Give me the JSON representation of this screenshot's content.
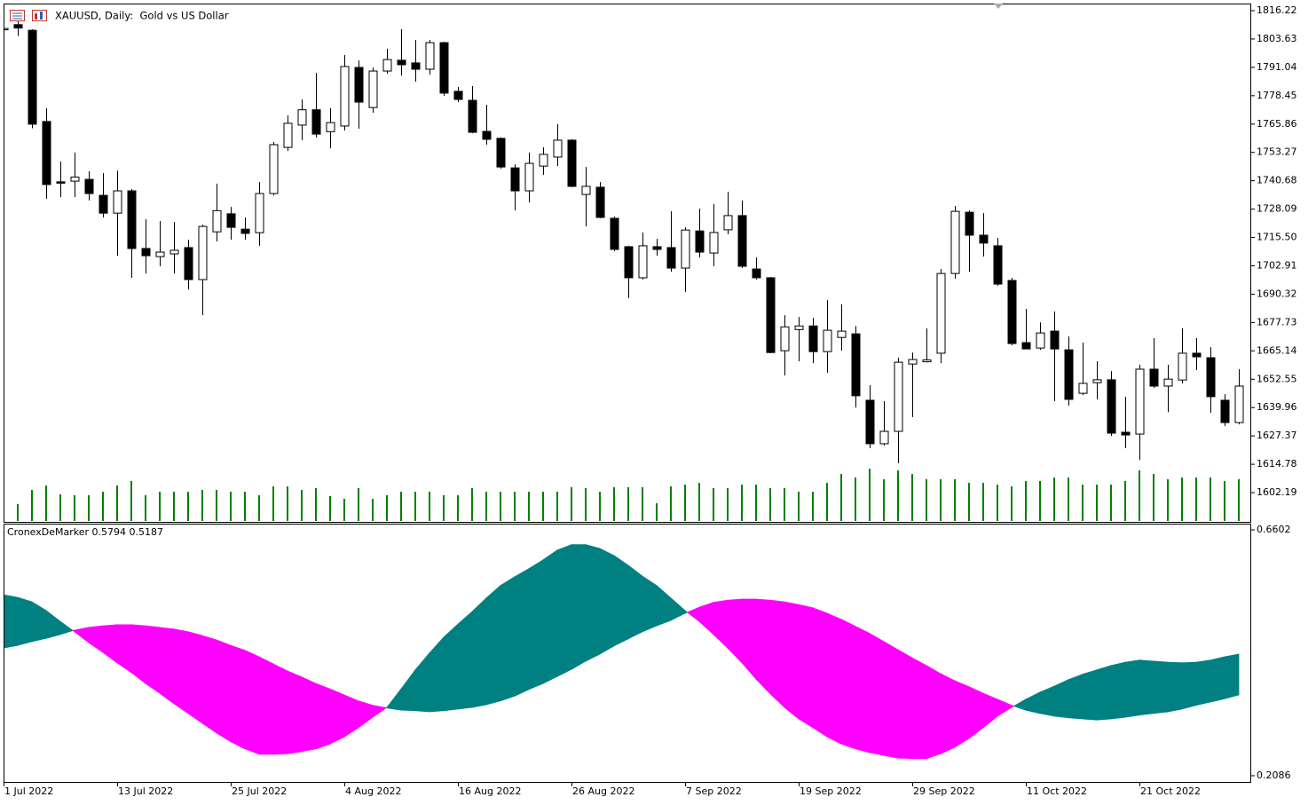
{
  "chart_data": [
    {
      "type": "candlestick",
      "title": "XAUUSD, Daily:  Gold vs US Dollar",
      "categories": [
        "1 Jul 2022",
        null,
        null,
        null,
        null,
        null,
        null,
        null,
        "13 Jul 2022",
        null,
        null,
        null,
        null,
        null,
        null,
        null,
        "25 Jul 2022",
        null,
        null,
        null,
        null,
        null,
        null,
        null,
        "4 Aug 2022",
        null,
        null,
        null,
        null,
        null,
        null,
        null,
        "16 Aug 2022",
        null,
        null,
        null,
        null,
        null,
        null,
        null,
        "26 Aug 2022",
        null,
        null,
        null,
        null,
        null,
        null,
        null,
        "7 Sep 2022",
        null,
        null,
        null,
        null,
        null,
        null,
        null,
        "19 Sep 2022",
        null,
        null,
        null,
        null,
        null,
        null,
        null,
        "29 Sep 2022",
        null,
        null,
        null,
        null,
        null,
        null,
        null,
        "11 Oct 2022",
        null,
        null,
        null,
        null,
        null,
        null,
        null,
        "21 Oct 2022",
        null,
        null,
        null,
        null,
        null,
        null,
        null
      ],
      "open": [
        1808,
        1810,
        1807.5,
        1767,
        1740.2,
        1740.5,
        1741.3,
        1734.2,
        1726.3,
        1736.2,
        1710.6,
        1707,
        1708.2,
        1711,
        1696.8,
        1718,
        1726,
        1719.2,
        1717.6,
        1735,
        1755.5,
        1765.4,
        1772.2,
        1762.5,
        1765,
        1791,
        1773.2,
        1789.4,
        1794.2,
        1793,
        1790.2,
        1802,
        1780.4,
        1776.4,
        1762.6,
        1759.5,
        1746.4,
        1736.2,
        1747.2,
        1751.2,
        1758.7,
        1734.6,
        1737.8,
        1724,
        1711.4,
        1697.6,
        1711.4,
        1711,
        1701.9,
        1718.4,
        1708.6,
        1718.9,
        1725.2,
        1701.5,
        1697.6,
        1665.2,
        1674.6,
        1676.2,
        1664.8,
        1671.1,
        1672.7,
        1643.2,
        1623.9,
        1629.4,
        1659.3,
        1660.3,
        1664.1,
        1699.5,
        1726.7,
        1716.5,
        1711.8,
        1696.4,
        1668.8,
        1666.4,
        1673.9,
        1665.6,
        1646.3,
        1651,
        1652.3,
        1629,
        1628.2,
        1657,
        1649.5,
        1652.2,
        1664.1,
        1662.1,
        1643.2,
        1633.3
      ],
      "high": [
        1808.5,
        1811.5,
        1808,
        1772.8,
        1749.2,
        1753.2,
        1744.9,
        1744.1,
        1745.2,
        1737,
        1723.6,
        1722.8,
        1722.4,
        1714.5,
        1721.2,
        1739.4,
        1729.1,
        1724.4,
        1740.1,
        1757.9,
        1769.7,
        1776.8,
        1788.6,
        1772.9,
        1796.5,
        1794.1,
        1791,
        1799.3,
        1808,
        1803.2,
        1803.2,
        1802.4,
        1782.3,
        1782.7,
        1774.4,
        1759.9,
        1748,
        1753.2,
        1755.5,
        1765.8,
        1759.1,
        1746.8,
        1740.1,
        1724.8,
        1711.8,
        1717.7,
        1714.9,
        1727.1,
        1720,
        1728.3,
        1730.3,
        1735.8,
        1731.9,
        1706.6,
        1698,
        1681,
        1680.2,
        1679.8,
        1687.7,
        1685.8,
        1676.2,
        1649.9,
        1642.8,
        1662.1,
        1664.4,
        1675.1,
        1701.5,
        1729.5,
        1727.5,
        1726.3,
        1715.3,
        1697.6,
        1683.8,
        1677.8,
        1682.6,
        1671.5,
        1668.8,
        1660.5,
        1656.2,
        1644.7,
        1659,
        1670.8,
        1659,
        1675.1,
        1670.8,
        1666.8,
        1645.9,
        1657
      ],
      "low": [
        1807.5,
        1805,
        1764,
        1732.7,
        1733.4,
        1733.4,
        1731.9,
        1724.4,
        1707.4,
        1697.6,
        1699.5,
        1702.7,
        1699.5,
        1692.4,
        1681,
        1713.7,
        1714.5,
        1714.5,
        1711.8,
        1734.2,
        1753.9,
        1758.7,
        1759.9,
        1755.1,
        1763,
        1763.8,
        1770.9,
        1788.2,
        1787.4,
        1784.7,
        1787.8,
        1778.4,
        1775.6,
        1761.8,
        1756.7,
        1746,
        1727.5,
        1731.1,
        1743.3,
        1747.2,
        1737.8,
        1720.4,
        1724,
        1709.4,
        1688.5,
        1696.8,
        1707.4,
        1700.3,
        1691.3,
        1706.6,
        1702.7,
        1716.9,
        1701.9,
        1696.8,
        1664.1,
        1654.2,
        1660.5,
        1659.7,
        1655.4,
        1665.2,
        1640,
        1621.9,
        1623.1,
        1615.2,
        1635.7,
        1660,
        1659.7,
        1697.2,
        1700.3,
        1707,
        1694,
        1667.6,
        1666,
        1665.6,
        1642.8,
        1640.8,
        1645.5,
        1643.6,
        1627.4,
        1621.9,
        1616.7,
        1648.7,
        1637.9,
        1650.7,
        1656.6,
        1637.6,
        1631.7,
        1632.5
      ],
      "close": [
        1808.3,
        1808.5,
        1765.8,
        1739,
        1740,
        1742.3,
        1735,
        1726.3,
        1736.2,
        1710.6,
        1707.4,
        1709,
        1709.8,
        1696.8,
        1720.4,
        1727.4,
        1720,
        1717.3,
        1735,
        1756.7,
        1766.2,
        1772.2,
        1761.4,
        1766.5,
        1791.4,
        1775.6,
        1789.4,
        1794.5,
        1792.2,
        1790.2,
        1802,
        1779.6,
        1776.8,
        1762.2,
        1759.1,
        1746.8,
        1736.2,
        1748.4,
        1752.4,
        1758.7,
        1738.2,
        1738.2,
        1724.4,
        1710.2,
        1697.6,
        1711.8,
        1710.2,
        1701.9,
        1718.8,
        1709,
        1717.7,
        1725.2,
        1702.7,
        1697.6,
        1664.4,
        1675.8,
        1676.2,
        1664.8,
        1674.3,
        1673.9,
        1645.2,
        1623.9,
        1629.4,
        1660.1,
        1661.3,
        1661.1,
        1699.5,
        1727.1,
        1716.5,
        1713,
        1694.8,
        1668.4,
        1666,
        1673.1,
        1666,
        1643.6,
        1650.7,
        1652.3,
        1628.6,
        1627.8,
        1657,
        1649.5,
        1652.6,
        1664.1,
        1662.5,
        1644.8,
        1633.3,
        1649.5
      ],
      "volumes": [
        null,
        20,
        36,
        41,
        31,
        30,
        30,
        34,
        41,
        46,
        30,
        34,
        34,
        34,
        36,
        36,
        34,
        34,
        30,
        40,
        40,
        36,
        38,
        29,
        26,
        38,
        26,
        30,
        34,
        34,
        34,
        30,
        30,
        38,
        34,
        34,
        34,
        34,
        34,
        34,
        39,
        38,
        34,
        39,
        39,
        39,
        21,
        40,
        42,
        44,
        38,
        38,
        42,
        42,
        38,
        38,
        34,
        34,
        44,
        54,
        50,
        60,
        48,
        58,
        54,
        48,
        48,
        48,
        44,
        44,
        42,
        40,
        46,
        46,
        50,
        50,
        42,
        42,
        42,
        46,
        58,
        54,
        48,
        50,
        50,
        50,
        46,
        48
      ],
      "ylim": [
        1589.2,
        1819.37
      ],
      "yticks": [
        1816.22,
        1803.63,
        1791.04,
        1778.45,
        1765.86,
        1753.27,
        1740.68,
        1728.09,
        {
          "value": 1715.5,
          "label": "1715.50"
        },
        1702.91,
        1690.32,
        1677.73,
        1665.14,
        1652.55,
        1639.96,
        1627.37,
        1614.78,
        1602.19
      ],
      "volume_ylim": [
        0,
        584
      ],
      "up_color": "#ffffff",
      "down_color": "#000000",
      "outline_color": "#000000",
      "volume_color": "#008000"
    },
    {
      "type": "band",
      "title": "CronexDeMarker 0.5794 0.5187",
      "series": [
        {
          "values": [
            0.541,
            0.536,
            0.528,
            0.512,
            0.492,
            0.473,
            0.453,
            0.435,
            0.416,
            0.398,
            0.378,
            0.36,
            0.341,
            0.323,
            0.305,
            0.287,
            0.271,
            0.258,
            0.248,
            0.248,
            0.249,
            0.253,
            0.258,
            0.267,
            0.28,
            0.297,
            0.316,
            0.334,
            0.368,
            0.403,
            0.434,
            0.463,
            0.487,
            0.51,
            0.535,
            0.558,
            0.574,
            0.589,
            0.605,
            0.623,
            0.633,
            0.633,
            0.626,
            0.613,
            0.595,
            0.575,
            0.558,
            0.535,
            0.512,
            0.492,
            0.468,
            0.443,
            0.416,
            0.386,
            0.359,
            0.334,
            0.313,
            0.297,
            0.28,
            0.267,
            0.258,
            0.251,
            0.246,
            0.241,
            0.24,
            0.24,
            0.249,
            0.261,
            0.277,
            0.297,
            0.318,
            0.334,
            0.349,
            0.362,
            0.373,
            0.385,
            0.395,
            0.403,
            0.411,
            0.417,
            0.421,
            0.419,
            0.417,
            0.416,
            0.417,
            0.421,
            0.427,
            0.432
          ]
        },
        {
          "values": [
            0.443,
            0.448,
            0.455,
            0.461,
            0.468,
            0.476,
            0.481,
            0.484,
            0.486,
            0.486,
            0.484,
            0.481,
            0.478,
            0.473,
            0.466,
            0.458,
            0.448,
            0.439,
            0.427,
            0.414,
            0.401,
            0.39,
            0.378,
            0.368,
            0.357,
            0.346,
            0.338,
            0.333,
            0.329,
            0.328,
            0.326,
            0.328,
            0.331,
            0.334,
            0.339,
            0.346,
            0.355,
            0.367,
            0.378,
            0.391,
            0.404,
            0.419,
            0.432,
            0.447,
            0.46,
            0.473,
            0.484,
            0.494,
            0.507,
            0.518,
            0.527,
            0.531,
            0.533,
            0.533,
            0.531,
            0.528,
            0.523,
            0.517,
            0.507,
            0.496,
            0.483,
            0.47,
            0.455,
            0.44,
            0.425,
            0.411,
            0.396,
            0.383,
            0.372,
            0.36,
            0.349,
            0.338,
            0.329,
            0.323,
            0.318,
            0.315,
            0.313,
            0.311,
            0.313,
            0.316,
            0.32,
            0.323,
            0.326,
            0.331,
            0.338,
            0.344,
            0.35,
            0.357
          ]
        }
      ],
      "ylim": [
        0.1988,
        0.6716
      ],
      "yticks": [
        0.2086,
        0.6602
      ],
      "above_color": "#008080",
      "below_color": "#ff00ff"
    }
  ]
}
